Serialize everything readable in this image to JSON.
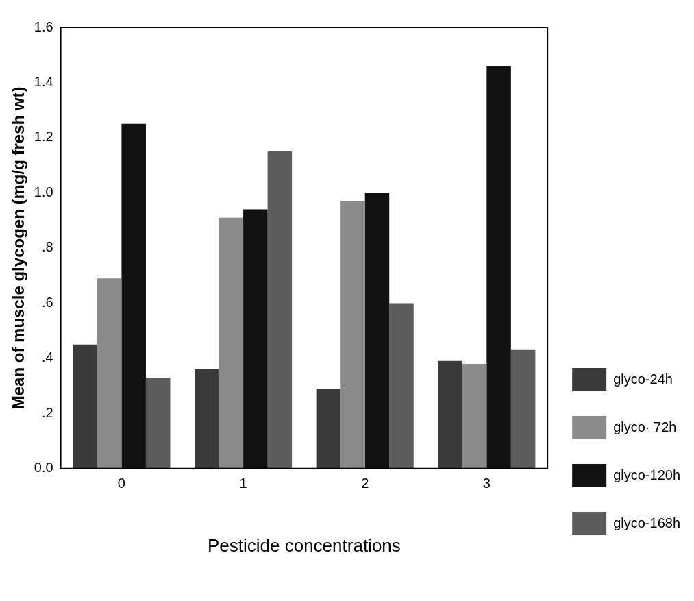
{
  "chart_data": {
    "type": "bar",
    "xlabel": "Pesticide concentrations",
    "ylabel": "Mean of muscle glycogen (mg/g fresh wt)",
    "categories": [
      "0",
      "1",
      "2",
      "3"
    ],
    "series": [
      {
        "name": "glyco-24h",
        "color": "#3a3a3a",
        "values": [
          0.45,
          0.36,
          0.29,
          0.39
        ]
      },
      {
        "name": "glyco· 72h",
        "color": "#8a8a8a",
        "values": [
          0.69,
          0.91,
          0.97,
          0.38
        ]
      },
      {
        "name": "glyco-120h",
        "color": "#111111",
        "values": [
          1.25,
          0.94,
          1.0,
          1.46
        ]
      },
      {
        "name": "glyco-168h",
        "color": "#5c5c5c",
        "values": [
          0.33,
          1.15,
          0.6,
          0.43
        ]
      }
    ],
    "ylim": [
      0,
      1.6
    ],
    "yticks": [
      {
        "value": 0,
        "label": "0.0"
      },
      {
        "value": 0.2,
        "label": ".2"
      },
      {
        "value": 0.4,
        "label": ".4"
      },
      {
        "value": 0.6,
        "label": ".6"
      },
      {
        "value": 0.8,
        "label": ".8"
      },
      {
        "value": 1,
        "label": "1.0"
      },
      1.2,
      1.4,
      1.6
    ],
    "grid": false,
    "legend": "right"
  }
}
